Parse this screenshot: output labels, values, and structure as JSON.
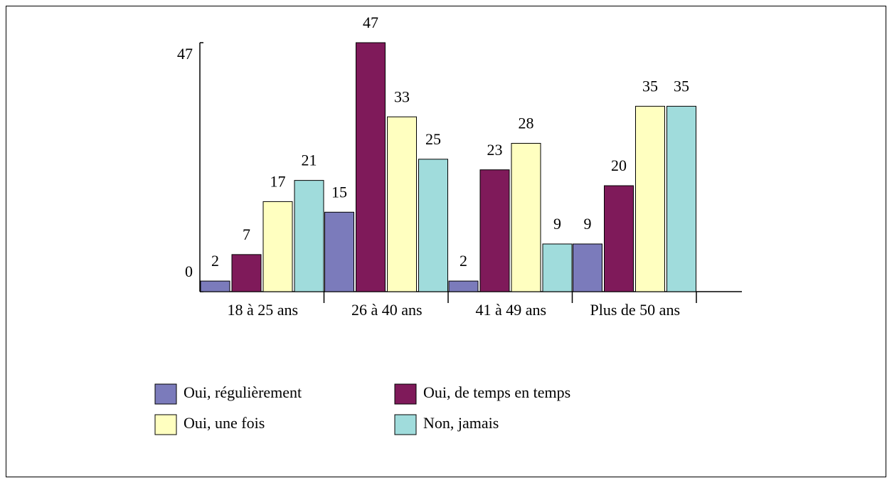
{
  "chart_data": {
    "type": "bar",
    "categories": [
      "18 à 25 ans",
      "26 à 40 ans",
      "41 à 49 ans",
      "Plus de 50 ans"
    ],
    "series": [
      {
        "name": "Oui, régulièrement",
        "color": "#7b7bbb",
        "values": [
          2,
          15,
          2,
          9
        ]
      },
      {
        "name": "Oui, de temps en temps",
        "color": "#7f1a5a",
        "values": [
          7,
          47,
          23,
          20
        ]
      },
      {
        "name": "Oui, une fois",
        "color": "#ffffc0",
        "values": [
          17,
          33,
          28,
          35
        ]
      },
      {
        "name": "Non, jamais",
        "color": "#a0dcdc",
        "values": [
          21,
          25,
          9,
          35
        ]
      }
    ],
    "ylim": [
      0,
      47
    ],
    "yticks": [
      0,
      47
    ],
    "grid": false,
    "data_labels": true
  }
}
